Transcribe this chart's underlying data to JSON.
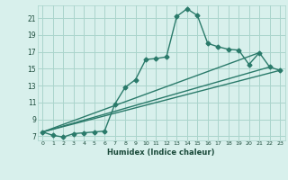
{
  "xlabel": "Humidex (Indice chaleur)",
  "bg_color": "#d8f0ec",
  "grid_color": "#aad4cc",
  "line_color": "#2a7a6a",
  "xlim": [
    -0.5,
    23.5
  ],
  "ylim": [
    6.5,
    22.5
  ],
  "yticks": [
    7,
    9,
    11,
    13,
    15,
    17,
    19,
    21
  ],
  "xticks": [
    0,
    1,
    2,
    3,
    4,
    5,
    6,
    7,
    8,
    9,
    10,
    11,
    12,
    13,
    14,
    15,
    16,
    17,
    18,
    19,
    20,
    21,
    22,
    23
  ],
  "line1_x": [
    0,
    1,
    2,
    3,
    4,
    5,
    6,
    7,
    8,
    9,
    10,
    11,
    12,
    13,
    14,
    15,
    16,
    17,
    18,
    19,
    20,
    21,
    22,
    23
  ],
  "line1_y": [
    7.5,
    7.1,
    6.9,
    7.3,
    7.4,
    7.5,
    7.6,
    10.8,
    12.8,
    13.7,
    16.1,
    16.2,
    16.4,
    21.2,
    22.1,
    21.3,
    18.0,
    17.6,
    17.3,
    17.2,
    15.5,
    16.9,
    15.2,
    14.8
  ],
  "line2_x": [
    0,
    23
  ],
  "line2_y": [
    7.5,
    14.8
  ],
  "line3_x": [
    0,
    22
  ],
  "line3_y": [
    7.5,
    15.2
  ],
  "line4_x": [
    0,
    21
  ],
  "line4_y": [
    7.5,
    16.9
  ]
}
